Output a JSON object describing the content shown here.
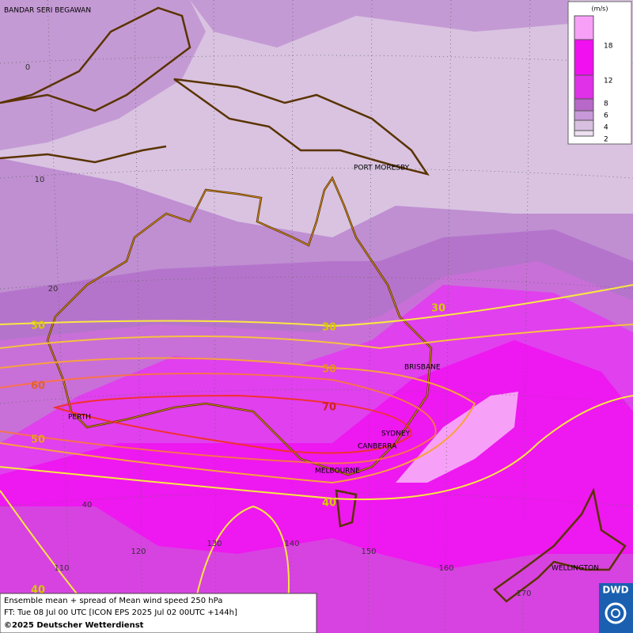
{
  "legend": {
    "unit": "(m/s)",
    "ticks": [
      18,
      12,
      8,
      6,
      4,
      2
    ]
  },
  "cities": [
    "BANDAR SERI BEGAWAN",
    "PORT MORESBY",
    "BRISBANE",
    "PERTH",
    "SYDNEY",
    "CANBERRA",
    "MELBOURNE",
    "WELLINGTON"
  ],
  "latitude_labels": [
    0,
    10,
    20,
    40
  ],
  "longitude_labels": [
    110,
    120,
    130,
    140,
    150,
    160,
    170
  ],
  "contour_labels": [
    30,
    30,
    30,
    50,
    60,
    70,
    50,
    40,
    40
  ],
  "caption": {
    "line1": "Ensemble mean + spread of Mean wind speed 250 hPa",
    "line2": "FT: Tue 08 Jul 00 UTC [ICON EPS 2025 Jul 02 00UTC +144h]",
    "copyright": "©2025 Deutscher Wetterdienst"
  },
  "logo": "DWD"
}
